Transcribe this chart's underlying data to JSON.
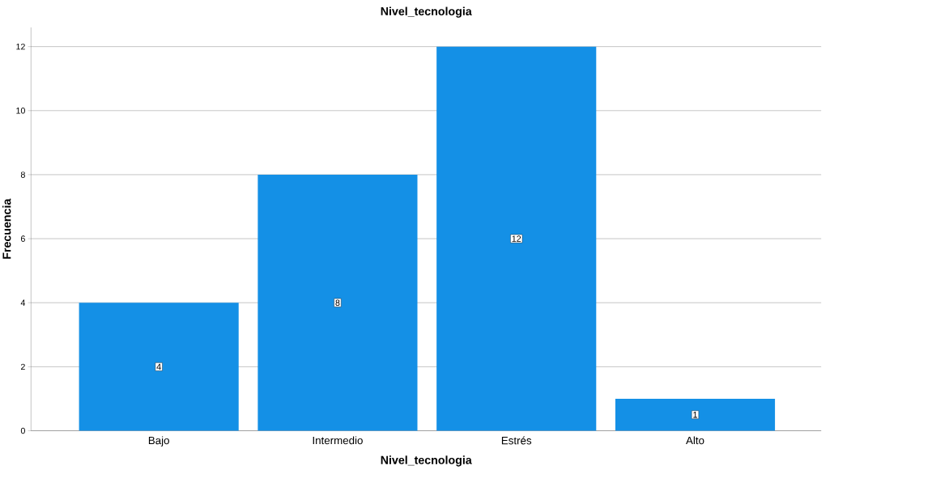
{
  "chart_data": {
    "type": "bar",
    "title": "Nivel_tecnologia",
    "xlabel": "Nivel_tecnologia",
    "ylabel": "Frecuencia",
    "categories": [
      "Bajo",
      "Intermedio",
      "Estrés",
      "Alto"
    ],
    "values": [
      4,
      8,
      12,
      1
    ],
    "color": "#1490e6",
    "ylim": [
      0,
      12.6
    ],
    "yticks": [
      0,
      2,
      4,
      6,
      8,
      10,
      12
    ],
    "grid": "y",
    "data_labels": true
  }
}
